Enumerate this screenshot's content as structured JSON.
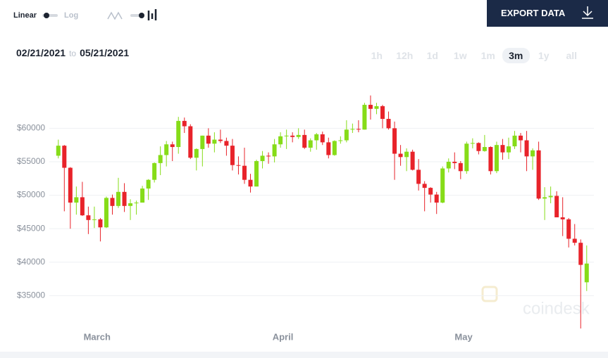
{
  "controls": {
    "linear": "Linear",
    "log": "Log",
    "export": "EXPORT DATA",
    "from": "02/21/2021",
    "to_word": "to",
    "to": "05/21/2021",
    "ranges": [
      "1h",
      "12h",
      "1d",
      "1w",
      "1m",
      "3m",
      "1y",
      "all"
    ],
    "active_range": "3m"
  },
  "chart_data": {
    "type": "candlestick",
    "watermark": "coindesk",
    "up_color": "#86dc18",
    "down_color": "#e8232a",
    "grid": true,
    "xlim": [
      -1.5,
      89.2
    ],
    "ylim": [
      30000,
      65500
    ],
    "xticks": [
      {
        "value": 6.45,
        "label": "March"
      },
      {
        "value": 37.4,
        "label": "April"
      },
      {
        "value": 67.5,
        "label": "May"
      }
    ],
    "yticks": [
      {
        "value": 35000,
        "label": "$35000"
      },
      {
        "value": 40000,
        "label": "$40000"
      },
      {
        "value": 45000,
        "label": "$45000"
      },
      {
        "value": 50000,
        "label": "$50000"
      },
      {
        "value": 55000,
        "label": "$55000"
      },
      {
        "value": 60000,
        "label": "$60000"
      }
    ],
    "open": [
      55900,
      57400,
      54100,
      48900,
      49700,
      47000,
      46300,
      46400,
      45200,
      49600,
      48400,
      50500,
      48400,
      48800,
      48900,
      51000,
      52300,
      54800,
      56000,
      57600,
      57200,
      61100,
      60300,
      55600,
      56900,
      58900,
      57700,
      58300,
      58100,
      57400,
      54500,
      54400,
      52300,
      51300,
      55100,
      55900,
      55800,
      57600,
      58800,
      58900,
      58700,
      59000,
      57100,
      58200,
      59100,
      57900,
      56000,
      58100,
      58200,
      59800,
      59900,
      59800,
      63500,
      62900,
      63300,
      61400,
      60000,
      56200,
      55700,
      56500,
      53800,
      51700,
      51100,
      50100,
      48900,
      54000,
      55000,
      54800,
      53600,
      57700,
      57800,
      56600,
      57200,
      53600,
      57500,
      56400,
      57300,
      58900,
      58200,
      55800,
      56700,
      49500,
      49700,
      49900,
      46700,
      46400,
      43500,
      42900,
      37000
    ],
    "high": [
      58300,
      57500,
      54200,
      51300,
      52000,
      48300,
      48300,
      46600,
      49800,
      50100,
      52600,
      51800,
      49400,
      49200,
      51400,
      52400,
      54900,
      57300,
      58100,
      58000,
      61700,
      61600,
      60600,
      57000,
      58900,
      60000,
      59400,
      59800,
      58600,
      58400,
      55800,
      57100,
      53200,
      55300,
      56600,
      56400,
      58400,
      59400,
      59800,
      59400,
      60000,
      59800,
      58500,
      59300,
      59500,
      58600,
      58200,
      58800,
      61200,
      60700,
      61200,
      63800,
      64900,
      63800,
      63500,
      62500,
      61000,
      57500,
      57000,
      56800,
      55400,
      52100,
      51200,
      50500,
      54300,
      55500,
      56400,
      55100,
      58000,
      58500,
      57900,
      59000,
      57300,
      58000,
      58400,
      58600,
      59600,
      59300,
      59600,
      57000,
      58000,
      51200,
      51300,
      50600,
      49700,
      46600,
      45700,
      43400,
      42500
    ],
    "low": [
      55500,
      47600,
      45000,
      47100,
      46900,
      44200,
      45100,
      43100,
      45100,
      47100,
      48100,
      47500,
      46300,
      47100,
      48900,
      49300,
      51900,
      53000,
      54300,
      55100,
      56200,
      59300,
      55400,
      53700,
      54300,
      57100,
      56400,
      57800,
      55900,
      53700,
      53100,
      51700,
      50400,
      51300,
      54000,
      54700,
      54900,
      57100,
      56900,
      57900,
      58400,
      56900,
      56500,
      56800,
      57500,
      55500,
      55900,
      57700,
      57900,
      59300,
      59400,
      59800,
      61300,
      62100,
      60000,
      59800,
      52300,
      54400,
      53600,
      53700,
      50700,
      47600,
      48900,
      47200,
      48800,
      53400,
      53900,
      52400,
      53200,
      57000,
      56100,
      56500,
      53100,
      53300,
      55300,
      55400,
      56900,
      56400,
      53600,
      53800,
      49300,
      46300,
      48800,
      46700,
      43900,
      42200,
      42500,
      30100,
      35700
    ],
    "close": [
      57400,
      54100,
      48900,
      49700,
      47000,
      46300,
      46400,
      45200,
      49600,
      48400,
      50500,
      48400,
      48800,
      48900,
      51000,
      52300,
      54800,
      56000,
      57600,
      57200,
      61100,
      60300,
      55600,
      56900,
      58900,
      57700,
      58300,
      58100,
      57400,
      54500,
      54400,
      52300,
      51300,
      55100,
      55900,
      55800,
      57600,
      58800,
      58900,
      58700,
      59000,
      57100,
      58200,
      59100,
      57900,
      56000,
      58100,
      58200,
      59800,
      59900,
      59800,
      63500,
      62900,
      63300,
      61400,
      60000,
      56200,
      55700,
      56500,
      53800,
      51700,
      51100,
      50100,
      48900,
      54000,
      55000,
      54800,
      53600,
      57700,
      57800,
      56600,
      57200,
      53600,
      57500,
      56400,
      57300,
      58900,
      58200,
      55800,
      56700,
      49500,
      49700,
      49900,
      46700,
      46400,
      43500,
      42900,
      39600,
      39800
    ]
  }
}
